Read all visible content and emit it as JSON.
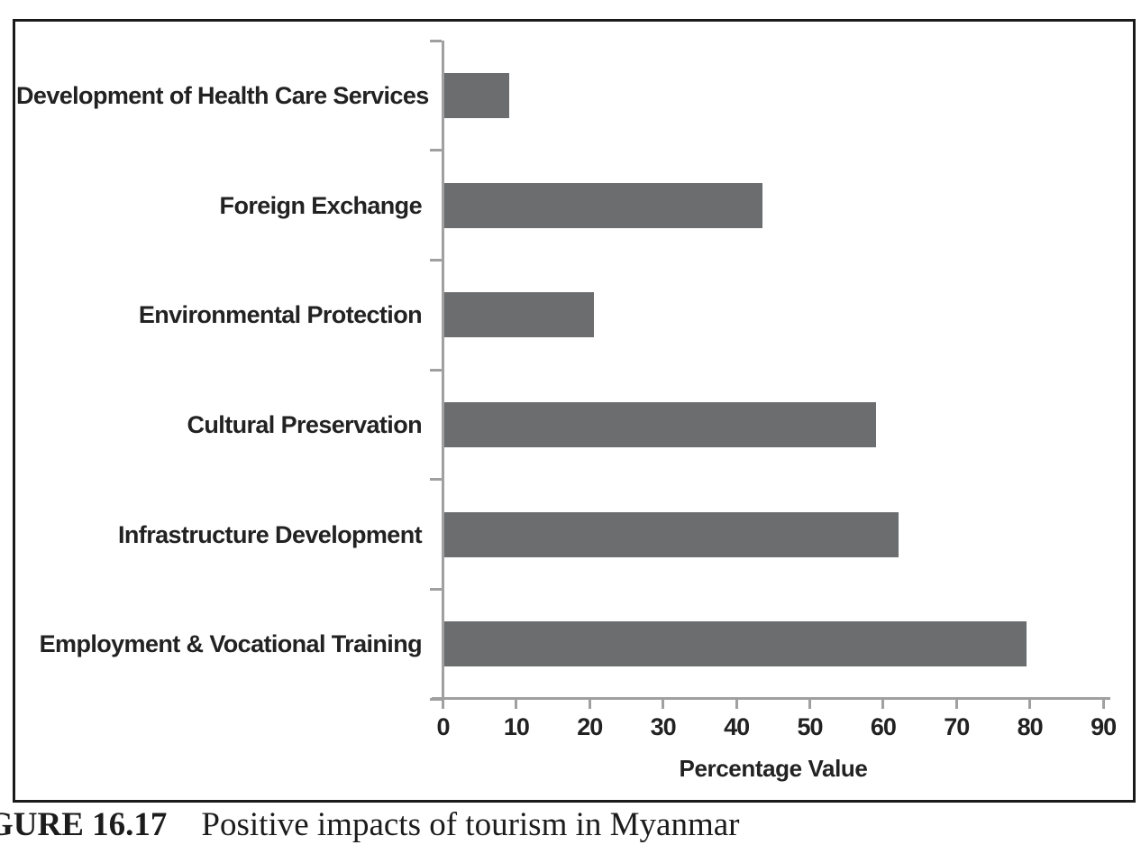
{
  "figure": {
    "caption_label": "GURE 16.17",
    "caption_text": "Positive impacts of tourism in Myanmar"
  },
  "chart_data": {
    "type": "bar",
    "orientation": "horizontal",
    "title": "",
    "xlabel": "Percentage Value",
    "ylabel": "",
    "categories": [
      "Development of Health Care Services",
      "Foreign Exchange",
      "Environmental Protection",
      "Cultural Preservation",
      "Infrastructure Development",
      "Employment & Vocational Training"
    ],
    "values": [
      9,
      43.5,
      20.5,
      59,
      62,
      79.5
    ],
    "xticks": [
      0,
      10,
      20,
      30,
      40,
      50,
      60,
      70,
      80,
      90
    ],
    "xlim": [
      0,
      90
    ],
    "grid": false,
    "legend": false,
    "colors": {
      "bar": "#6b6d6f",
      "axis": "#a0a0a0",
      "text": "#222222",
      "frame": "#1b1b1b",
      "background": "#ffffff"
    }
  }
}
